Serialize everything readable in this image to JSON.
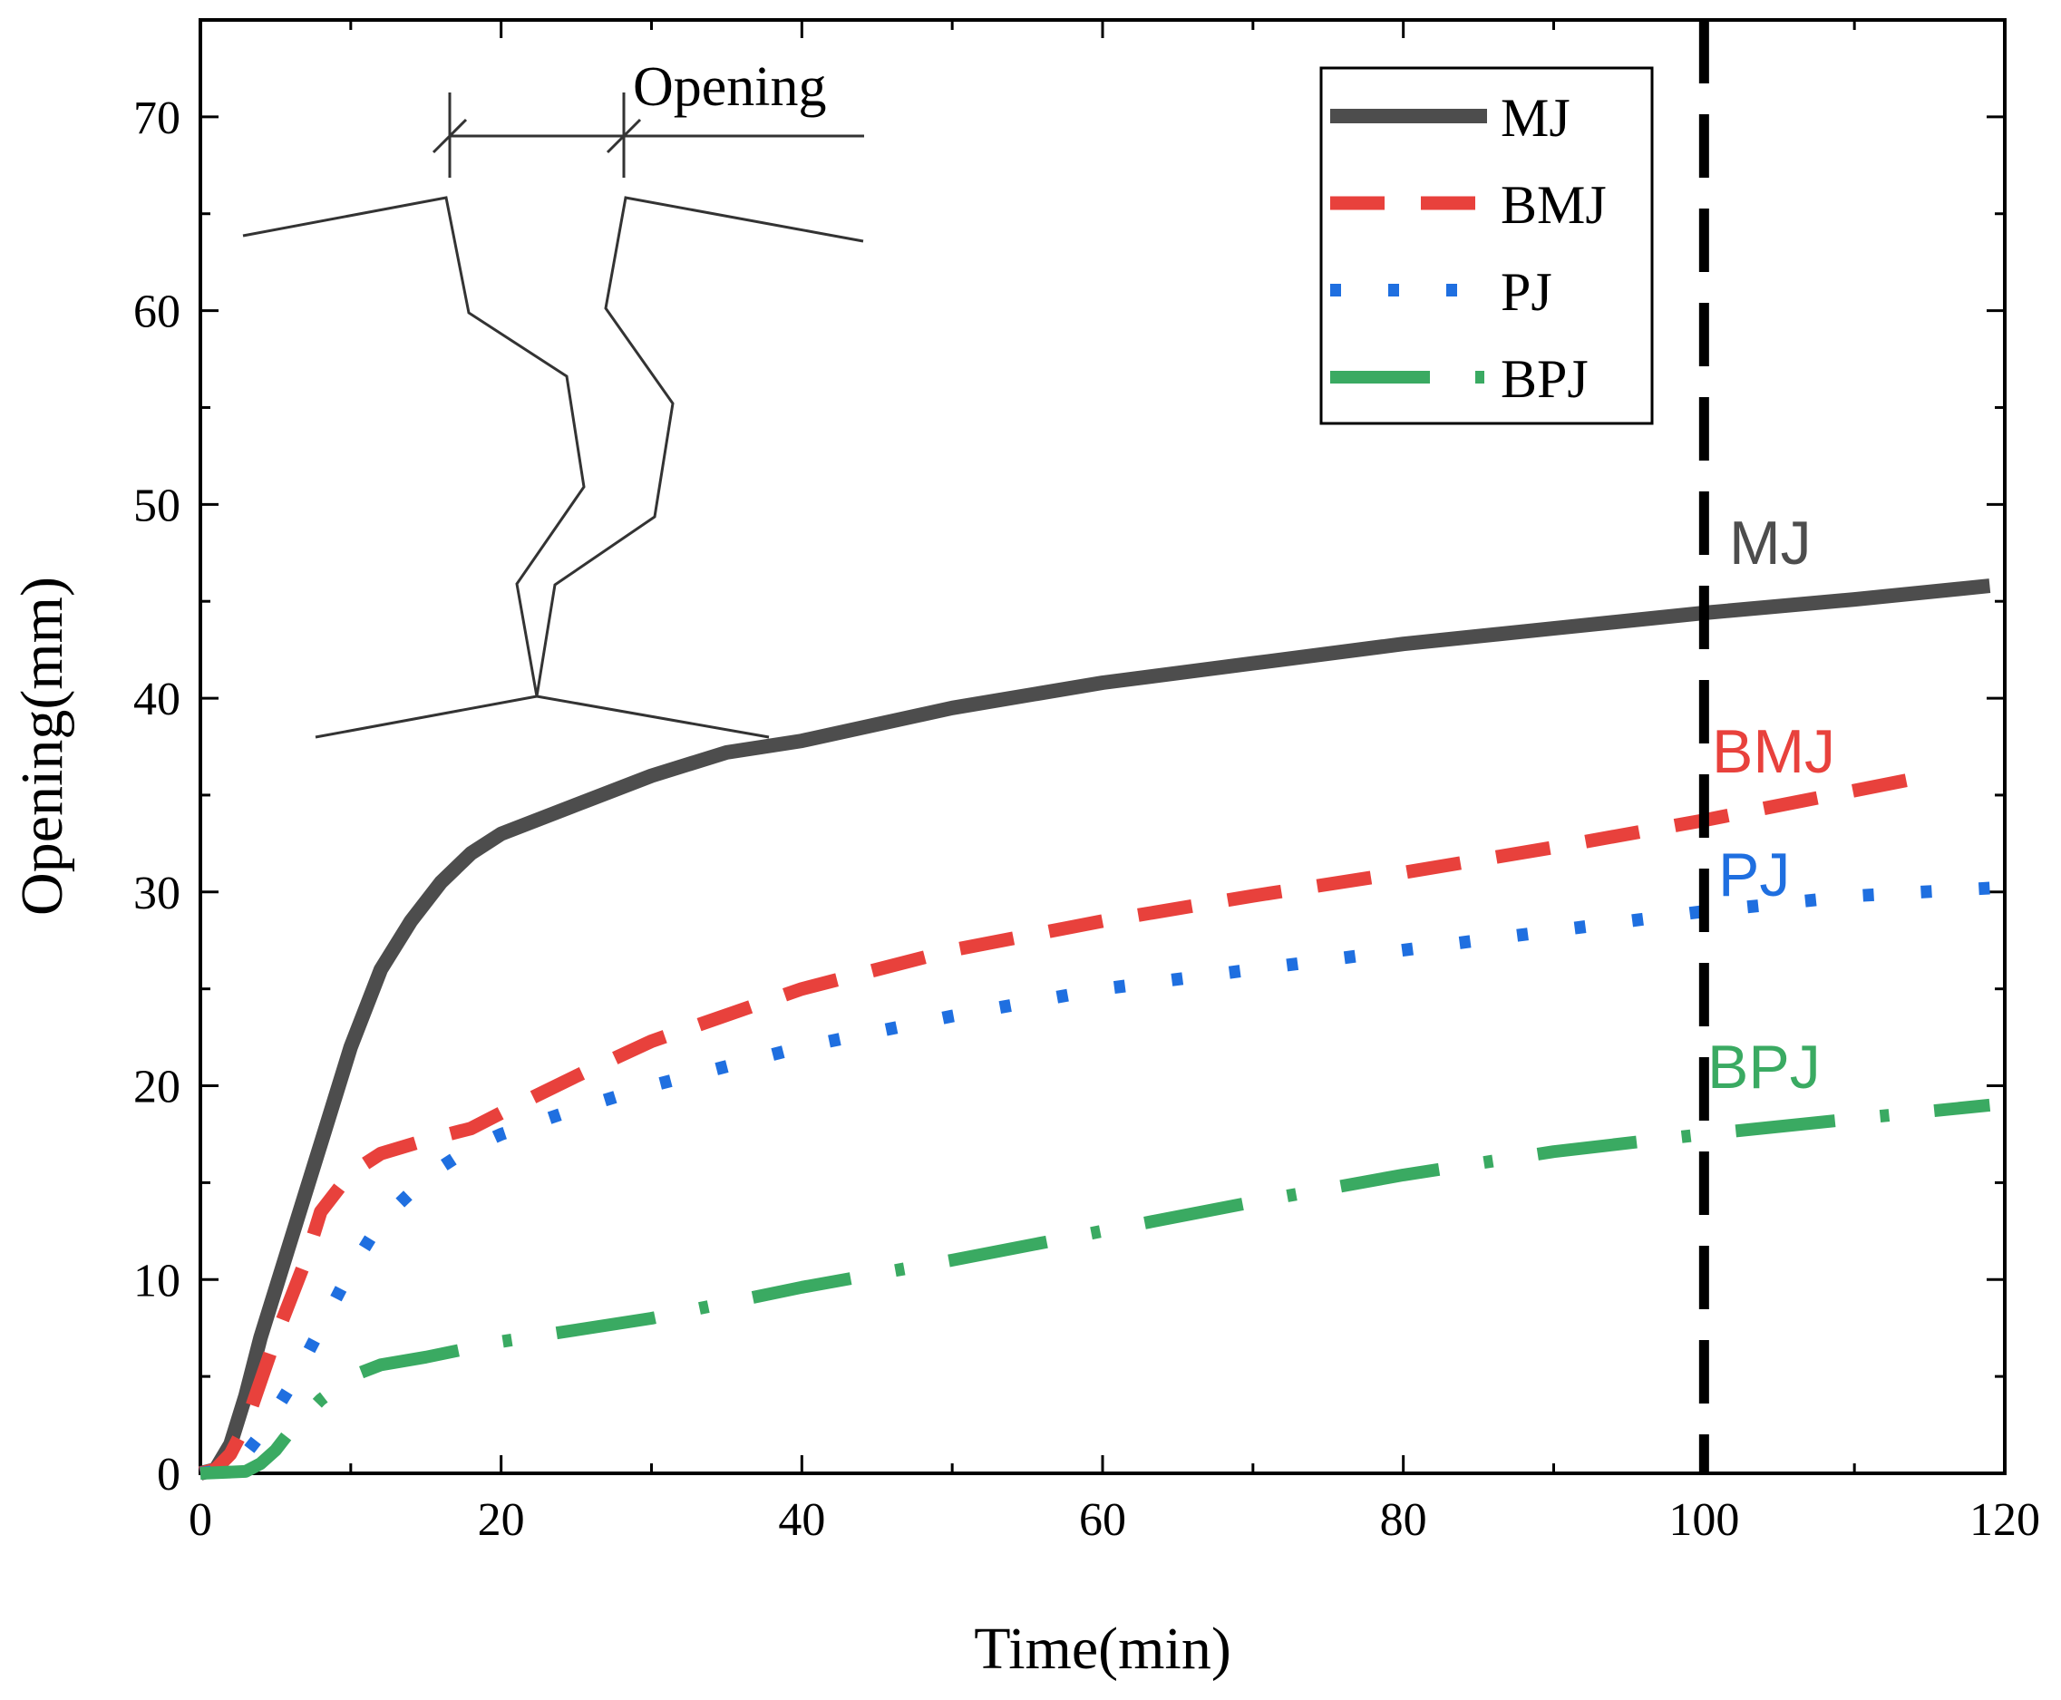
{
  "chart_data": {
    "type": "line",
    "title": "",
    "xlabel": "Time(min)",
    "ylabel": "Opening(mm)",
    "xlim": [
      0,
      120
    ],
    "ylim": [
      0,
      75
    ],
    "xticks": [
      0,
      20,
      40,
      60,
      80,
      100,
      120
    ],
    "yticks": [
      0,
      10,
      20,
      30,
      40,
      50,
      60,
      70
    ],
    "grid": false,
    "legend_position": "top-right",
    "vertical_reference_line": {
      "x": 100,
      "style": "dashed",
      "color": "#000000"
    },
    "series": [
      {
        "name": "MJ",
        "color": "#4d4d4d",
        "style": "solid",
        "inline_label": "MJ",
        "points": [
          [
            0,
            0
          ],
          [
            1,
            0.2
          ],
          [
            2,
            1.5
          ],
          [
            3,
            4
          ],
          [
            4,
            7
          ],
          [
            6,
            12
          ],
          [
            8,
            17
          ],
          [
            10,
            22
          ],
          [
            12,
            26
          ],
          [
            14,
            28.5
          ],
          [
            16,
            30.5
          ],
          [
            18,
            32
          ],
          [
            20,
            33
          ],
          [
            25,
            34.5
          ],
          [
            30,
            36
          ],
          [
            35,
            37.2
          ],
          [
            40,
            37.8
          ],
          [
            50,
            39.5
          ],
          [
            60,
            40.8
          ],
          [
            70,
            41.8
          ],
          [
            80,
            42.8
          ],
          [
            90,
            43.6
          ],
          [
            100,
            44.4
          ],
          [
            110,
            45.1
          ],
          [
            119,
            45.8
          ]
        ]
      },
      {
        "name": "BMJ",
        "color": "#e8413c",
        "style": "dashed",
        "inline_label": "BMJ",
        "points": [
          [
            0,
            0
          ],
          [
            1,
            0.2
          ],
          [
            2,
            1
          ],
          [
            3,
            2.5
          ],
          [
            5,
            7
          ],
          [
            7,
            11
          ],
          [
            8,
            13.5
          ],
          [
            10,
            15.5
          ],
          [
            12,
            16.5
          ],
          [
            15,
            17.2
          ],
          [
            18,
            17.8
          ],
          [
            20,
            18.6
          ],
          [
            25,
            20.5
          ],
          [
            30,
            22.3
          ],
          [
            40,
            25
          ],
          [
            50,
            27
          ],
          [
            60,
            28.5
          ],
          [
            70,
            29.8
          ],
          [
            80,
            31
          ],
          [
            90,
            32.3
          ],
          [
            100,
            33.7
          ],
          [
            115,
            36
          ]
        ]
      },
      {
        "name": "PJ",
        "color": "#1f6fe0",
        "style": "dotted",
        "inline_label": "PJ",
        "points": [
          [
            0,
            0
          ],
          [
            2,
            0.2
          ],
          [
            3,
            1
          ],
          [
            4,
            2
          ],
          [
            6,
            4.5
          ],
          [
            8,
            7.5
          ],
          [
            10,
            10.5
          ],
          [
            12,
            13
          ],
          [
            14,
            14.5
          ],
          [
            16,
            15.8
          ],
          [
            18,
            16.8
          ],
          [
            20,
            17.5
          ],
          [
            25,
            18.8
          ],
          [
            30,
            20
          ],
          [
            40,
            22
          ],
          [
            50,
            23.6
          ],
          [
            60,
            25
          ],
          [
            70,
            26
          ],
          [
            80,
            27
          ],
          [
            90,
            28
          ],
          [
            100,
            29
          ],
          [
            110,
            29.8
          ],
          [
            119,
            30.2
          ]
        ]
      },
      {
        "name": "BPJ",
        "color": "#3aaa62",
        "style": "dashdot",
        "inline_label": "BPJ",
        "points": [
          [
            0,
            0
          ],
          [
            3,
            0.1
          ],
          [
            4,
            0.5
          ],
          [
            5,
            1.2
          ],
          [
            6,
            2.2
          ],
          [
            8,
            3.8
          ],
          [
            10,
            5
          ],
          [
            12,
            5.6
          ],
          [
            15,
            6
          ],
          [
            20,
            6.8
          ],
          [
            30,
            8
          ],
          [
            40,
            9.6
          ],
          [
            50,
            11
          ],
          [
            60,
            12.5
          ],
          [
            70,
            14
          ],
          [
            80,
            15.4
          ],
          [
            90,
            16.6
          ],
          [
            100,
            17.5
          ],
          [
            110,
            18.3
          ],
          [
            119,
            19
          ]
        ]
      }
    ],
    "inset_label": "Opening"
  }
}
